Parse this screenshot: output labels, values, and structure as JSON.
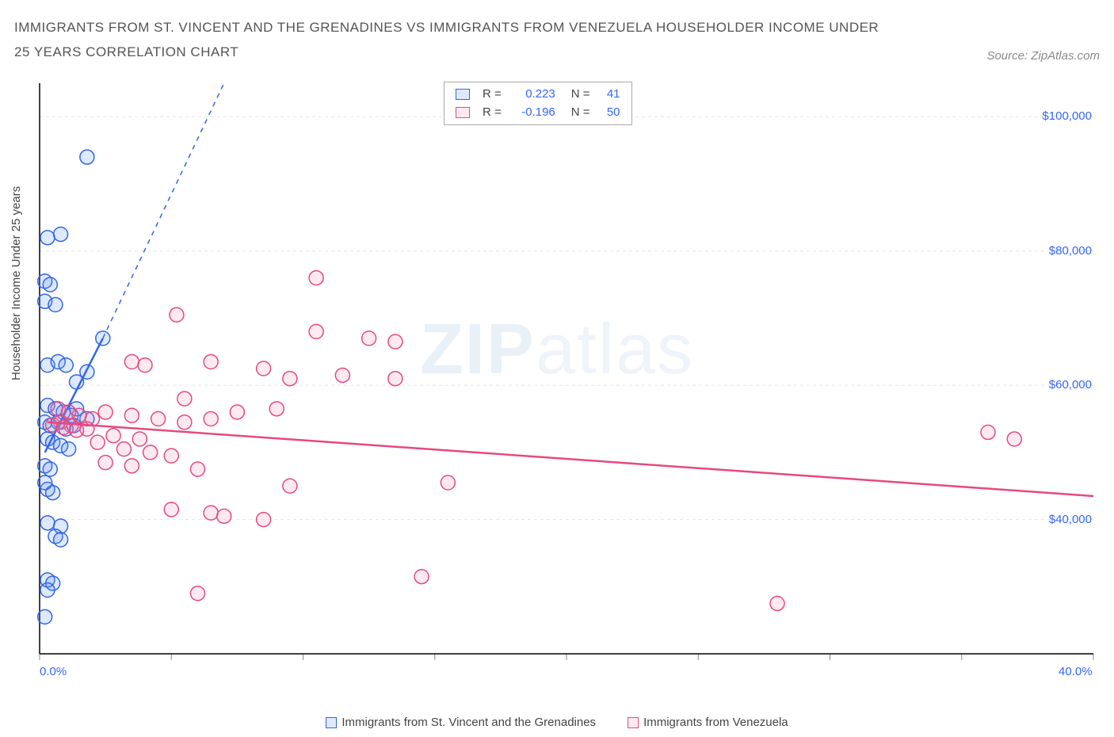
{
  "title": "IMMIGRANTS FROM ST. VINCENT AND THE GRENADINES VS IMMIGRANTS FROM VENEZUELA HOUSEHOLDER INCOME UNDER 25 YEARS CORRELATION CHART",
  "source_label": "Source: ZipAtlas.com",
  "watermark": {
    "zip": "ZIP",
    "atlas": "atlas"
  },
  "y_axis_label": "Householder Income Under 25 years",
  "chart": {
    "type": "scatter",
    "xlim": [
      0,
      40
    ],
    "ylim": [
      20000,
      105000
    ],
    "x_ticks": [
      0,
      5,
      10,
      15,
      20,
      25,
      30,
      35,
      40
    ],
    "x_tick_labels": {
      "0": "0.0%",
      "40": "40.0%"
    },
    "y_ticks": [
      40000,
      60000,
      80000,
      100000
    ],
    "y_tick_labels": {
      "40000": "$40,000",
      "60000": "$60,000",
      "80000": "$80,000",
      "100000": "$100,000"
    },
    "grid_color": "#e5e5e5",
    "axis_color": "#000000",
    "background_color": "#ffffff",
    "marker_radius": 9,
    "marker_stroke_width": 1.5,
    "marker_fill_opacity": 0.15,
    "trend_line_width": 2.5,
    "trend_dash_width": 1.5
  },
  "series": [
    {
      "name": "Immigrants from St. Vincent and the Grenadines",
      "color": "#5b8ff9",
      "stroke": "#3366e6",
      "fill": "rgba(91,143,249,0.20)",
      "R": "0.223",
      "N": "41",
      "trend": {
        "x1": 0.2,
        "y1": 50000,
        "x2": 2.4,
        "y2": 67000,
        "dash_x2": 7.0,
        "dash_y2": 105000
      },
      "points": [
        [
          0.3,
          82000
        ],
        [
          0.8,
          82500
        ],
        [
          0.2,
          75500
        ],
        [
          0.4,
          75000
        ],
        [
          0.2,
          72500
        ],
        [
          0.6,
          72000
        ],
        [
          0.3,
          63000
        ],
        [
          0.7,
          63500
        ],
        [
          1.0,
          63000
        ],
        [
          1.4,
          60500
        ],
        [
          1.8,
          62000
        ],
        [
          2.4,
          67000
        ],
        [
          0.3,
          57000
        ],
        [
          0.6,
          56500
        ],
        [
          0.9,
          56000
        ],
        [
          1.2,
          55500
        ],
        [
          1.4,
          56500
        ],
        [
          1.8,
          55000
        ],
        [
          0.2,
          54500
        ],
        [
          0.4,
          54000
        ],
        [
          0.7,
          54500
        ],
        [
          1.0,
          53500
        ],
        [
          1.3,
          54000
        ],
        [
          0.3,
          52000
        ],
        [
          0.5,
          51500
        ],
        [
          0.8,
          51000
        ],
        [
          1.1,
          50500
        ],
        [
          0.2,
          48000
        ],
        [
          0.4,
          47500
        ],
        [
          0.3,
          44500
        ],
        [
          0.5,
          44000
        ],
        [
          0.2,
          45500
        ],
        [
          0.3,
          39500
        ],
        [
          0.8,
          39000
        ],
        [
          0.6,
          37500
        ],
        [
          0.8,
          37000
        ],
        [
          0.3,
          31000
        ],
        [
          0.5,
          30500
        ],
        [
          0.3,
          29500
        ],
        [
          0.2,
          25500
        ],
        [
          1.8,
          94000
        ]
      ]
    },
    {
      "name": "Immigrants from Venezuela",
      "color": "#f783ac",
      "stroke": "#e64980",
      "fill": "rgba(247,131,172,0.18)",
      "R": "-0.196",
      "N": "50",
      "trend": {
        "x1": 0.3,
        "y1": 54500,
        "x2": 40,
        "y2": 43500
      },
      "points": [
        [
          10.5,
          76000
        ],
        [
          10.5,
          68000
        ],
        [
          5.2,
          70500
        ],
        [
          12.5,
          67000
        ],
        [
          13.5,
          66500
        ],
        [
          6.5,
          63500
        ],
        [
          8.5,
          62500
        ],
        [
          9.5,
          61000
        ],
        [
          11.5,
          61500
        ],
        [
          13.5,
          61000
        ],
        [
          3.5,
          63500
        ],
        [
          4.0,
          63000
        ],
        [
          5.5,
          58000
        ],
        [
          7.5,
          56000
        ],
        [
          9.0,
          56500
        ],
        [
          2.5,
          56000
        ],
        [
          3.5,
          55500
        ],
        [
          4.5,
          55000
        ],
        [
          5.5,
          54500
        ],
        [
          6.5,
          55000
        ],
        [
          1.5,
          55500
        ],
        [
          2.0,
          55000
        ],
        [
          0.8,
          54500
        ],
        [
          1.2,
          54000
        ],
        [
          1.8,
          53500
        ],
        [
          0.5,
          54100
        ],
        [
          0.9,
          53700
        ],
        [
          1.4,
          53300
        ],
        [
          0.7,
          56500
        ],
        [
          1.1,
          56000
        ],
        [
          2.8,
          52500
        ],
        [
          3.8,
          52000
        ],
        [
          2.2,
          51500
        ],
        [
          3.2,
          50500
        ],
        [
          4.2,
          50000
        ],
        [
          2.5,
          48500
        ],
        [
          3.5,
          48000
        ],
        [
          5.0,
          49500
        ],
        [
          6.0,
          47500
        ],
        [
          15.5,
          45500
        ],
        [
          9.5,
          45000
        ],
        [
          5.0,
          41500
        ],
        [
          6.5,
          41000
        ],
        [
          7.0,
          40500
        ],
        [
          8.5,
          40000
        ],
        [
          14.5,
          31500
        ],
        [
          6.0,
          29000
        ],
        [
          28.0,
          27500
        ],
        [
          36.0,
          53000
        ],
        [
          37.0,
          52000
        ]
      ]
    }
  ],
  "legend": {
    "r_prefix": "R =",
    "n_prefix": "N ="
  }
}
